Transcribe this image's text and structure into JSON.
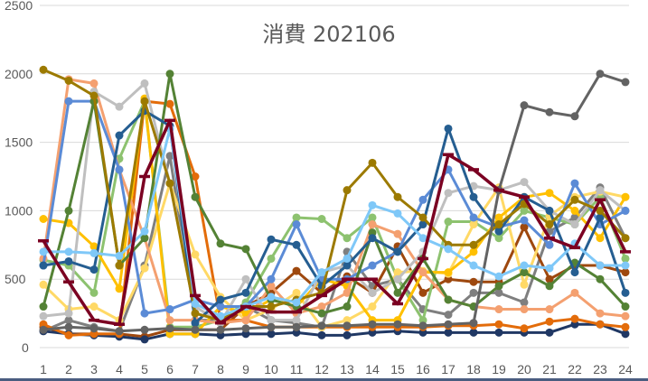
{
  "chart_data": {
    "type": "line",
    "title": "消費 202106",
    "xlabel": "",
    "ylabel": "",
    "x": [
      1,
      2,
      3,
      4,
      5,
      6,
      7,
      8,
      9,
      10,
      11,
      12,
      13,
      14,
      15,
      16,
      17,
      18,
      19,
      20,
      21,
      22,
      23,
      24
    ],
    "x_tick_labels": [
      "1",
      "2",
      "3",
      "4",
      "5",
      "6",
      "7",
      "8",
      "9",
      "10",
      "11",
      "12",
      "13",
      "14",
      "15",
      "16",
      "17",
      "18",
      "19",
      "20",
      "21",
      "22",
      "23",
      "24"
    ],
    "y_tick_labels": [
      "0",
      "500",
      "1000",
      "1500",
      "2000",
      "2500"
    ],
    "ylim": [
      0,
      2500
    ],
    "grid": "horizontal",
    "legend": "none",
    "series": [
      {
        "color": "#7F7F7F",
        "values": [
          120,
          200,
          150,
          120,
          600,
          1400,
          200,
          200,
          300,
          200,
          180,
          150,
          700,
          450,
          500,
          280,
          240,
          400,
          400,
          330,
          850,
          950,
          1170,
          800
        ]
      },
      {
        "color": "#9E480E",
        "values": [
          150,
          100,
          100,
          100,
          80,
          130,
          130,
          130,
          300,
          400,
          560,
          400,
          520,
          400,
          740,
          400,
          500,
          480,
          480,
          880,
          500,
          600,
          600,
          550
        ]
      },
      {
        "color": "#203864",
        "values": [
          120,
          100,
          90,
          80,
          60,
          100,
          100,
          90,
          100,
          100,
          110,
          90,
          90,
          110,
          120,
          110,
          110,
          110,
          110,
          110,
          110,
          170,
          170,
          100
        ]
      },
      {
        "color": "#E36C0A",
        "values": [
          170,
          90,
          100,
          100,
          1800,
          1780,
          1250,
          200,
          200,
          150,
          150,
          150,
          150,
          150,
          150,
          150,
          160,
          160,
          170,
          140,
          190,
          210,
          170,
          150
        ]
      },
      {
        "color": "#8DC26F",
        "values": [
          640,
          600,
          400,
          1380,
          1800,
          150,
          150,
          200,
          330,
          650,
          950,
          940,
          800,
          950,
          500,
          200,
          920,
          920,
          800,
          1000,
          950,
          900,
          1100,
          650
        ]
      },
      {
        "color": "#FFD966",
        "values": [
          460,
          280,
          300,
          200,
          580,
          1200,
          680,
          370,
          200,
          280,
          400,
          150,
          200,
          300,
          550,
          560,
          540,
          900,
          1170,
          460,
          960,
          1100,
          1140,
          1100
        ]
      },
      {
        "color": "#FFC000",
        "values": [
          940,
          910,
          740,
          430,
          1820,
          100,
          100,
          300,
          250,
          350,
          300,
          500,
          450,
          200,
          200,
          550,
          550,
          700,
          950,
          1100,
          1130,
          1000,
          800,
          1100
        ]
      },
      {
        "color": "#F4A070",
        "values": [
          650,
          1960,
          1930,
          1300,
          800,
          200,
          200,
          180,
          200,
          450,
          250,
          300,
          400,
          900,
          830,
          550,
          350,
          300,
          280,
          280,
          280,
          400,
          250,
          230
        ]
      },
      {
        "color": "#BFBFBF",
        "values": [
          230,
          250,
          1870,
          1760,
          1930,
          1200,
          300,
          180,
          500,
          200,
          200,
          550,
          600,
          400,
          500,
          700,
          1130,
          1180,
          1150,
          1210,
          1000,
          900,
          1150,
          1000
        ]
      },
      {
        "color": "#5B8BD6",
        "values": [
          600,
          1800,
          1800,
          1300,
          250,
          280,
          350,
          300,
          300,
          500,
          900,
          500,
          500,
          600,
          700,
          1080,
          1300,
          950,
          880,
          930,
          750,
          1200,
          900,
          1000
        ]
      },
      {
        "color": "#548235",
        "values": [
          300,
          1000,
          1800,
          600,
          800,
          2000,
          1100,
          760,
          720,
          350,
          300,
          250,
          300,
          840,
          400,
          650,
          350,
          300,
          450,
          550,
          450,
          620,
          500,
          300
        ]
      },
      {
        "color": "#255E91",
        "values": [
          600,
          630,
          570,
          1550,
          1730,
          1620,
          180,
          350,
          400,
          790,
          750,
          450,
          600,
          800,
          700,
          900,
          1600,
          1100,
          850,
          1100,
          1000,
          550,
          950,
          400
        ]
      },
      {
        "color": "#9C7A00",
        "values": [
          2030,
          1950,
          1840,
          600,
          1800,
          1200,
          250,
          200,
          300,
          300,
          350,
          400,
          1150,
          1350,
          1100,
          950,
          750,
          750,
          900,
          1050,
          900,
          1080,
          1000,
          800
        ]
      },
      {
        "color": "#636363",
        "values": [
          130,
          150,
          140,
          120,
          130,
          140,
          130,
          130,
          140,
          150,
          150,
          160,
          160,
          170,
          170,
          160,
          170,
          180,
          1150,
          1770,
          1720,
          1690,
          2000,
          1940
        ]
      },
      {
        "color": "#7FC8F8",
        "values": [
          700,
          700,
          690,
          670,
          850,
          1600,
          320,
          230,
          300,
          370,
          330,
          550,
          650,
          1040,
          980,
          800,
          720,
          600,
          520,
          600,
          580,
          760,
          600,
          600
        ]
      },
      {
        "color": "#7B0022",
        "marker": "dash",
        "values": [
          780,
          480,
          200,
          170,
          1250,
          1660,
          380,
          180,
          300,
          260,
          260,
          380,
          500,
          500,
          320,
          650,
          1410,
          1300,
          1150,
          1100,
          800,
          730,
          1080,
          700
        ]
      }
    ]
  }
}
